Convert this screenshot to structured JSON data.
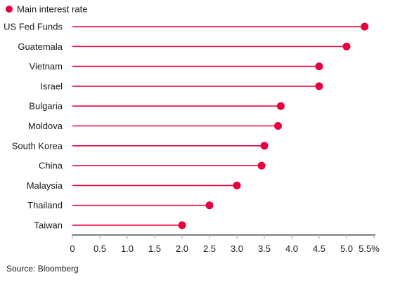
{
  "chart_data": {
    "type": "lollipop",
    "legend": {
      "label": "Main interest rate",
      "placement": "top-left"
    },
    "categories": [
      "US Fed Funds",
      "Guatemala",
      "Vietnam",
      "Israel",
      "Bulgaria",
      "Moldova",
      "South Korea",
      "China",
      "Malaysia",
      "Thailand",
      "Taiwan"
    ],
    "values": [
      5.33,
      5.0,
      4.5,
      4.5,
      3.8,
      3.75,
      3.5,
      3.45,
      3.0,
      2.5,
      2.0
    ],
    "xlim": [
      0,
      5.5
    ],
    "ticks": [
      "0",
      "0.5",
      "1.0",
      "1.5",
      "2.0",
      "2.5",
      "3.0",
      "3.5",
      "4.0",
      "4.5",
      "5.0",
      "5.5%"
    ],
    "tick_values": [
      0,
      0.5,
      1.0,
      1.5,
      2.0,
      2.5,
      3.0,
      3.5,
      4.0,
      4.5,
      5.0,
      5.5
    ],
    "grid": false,
    "source": "Source: Bloomberg",
    "colors": {
      "accent": "#e8003d",
      "text": "#1a1a1a",
      "axis": "#000000",
      "tick": "#b0b0b0"
    }
  }
}
